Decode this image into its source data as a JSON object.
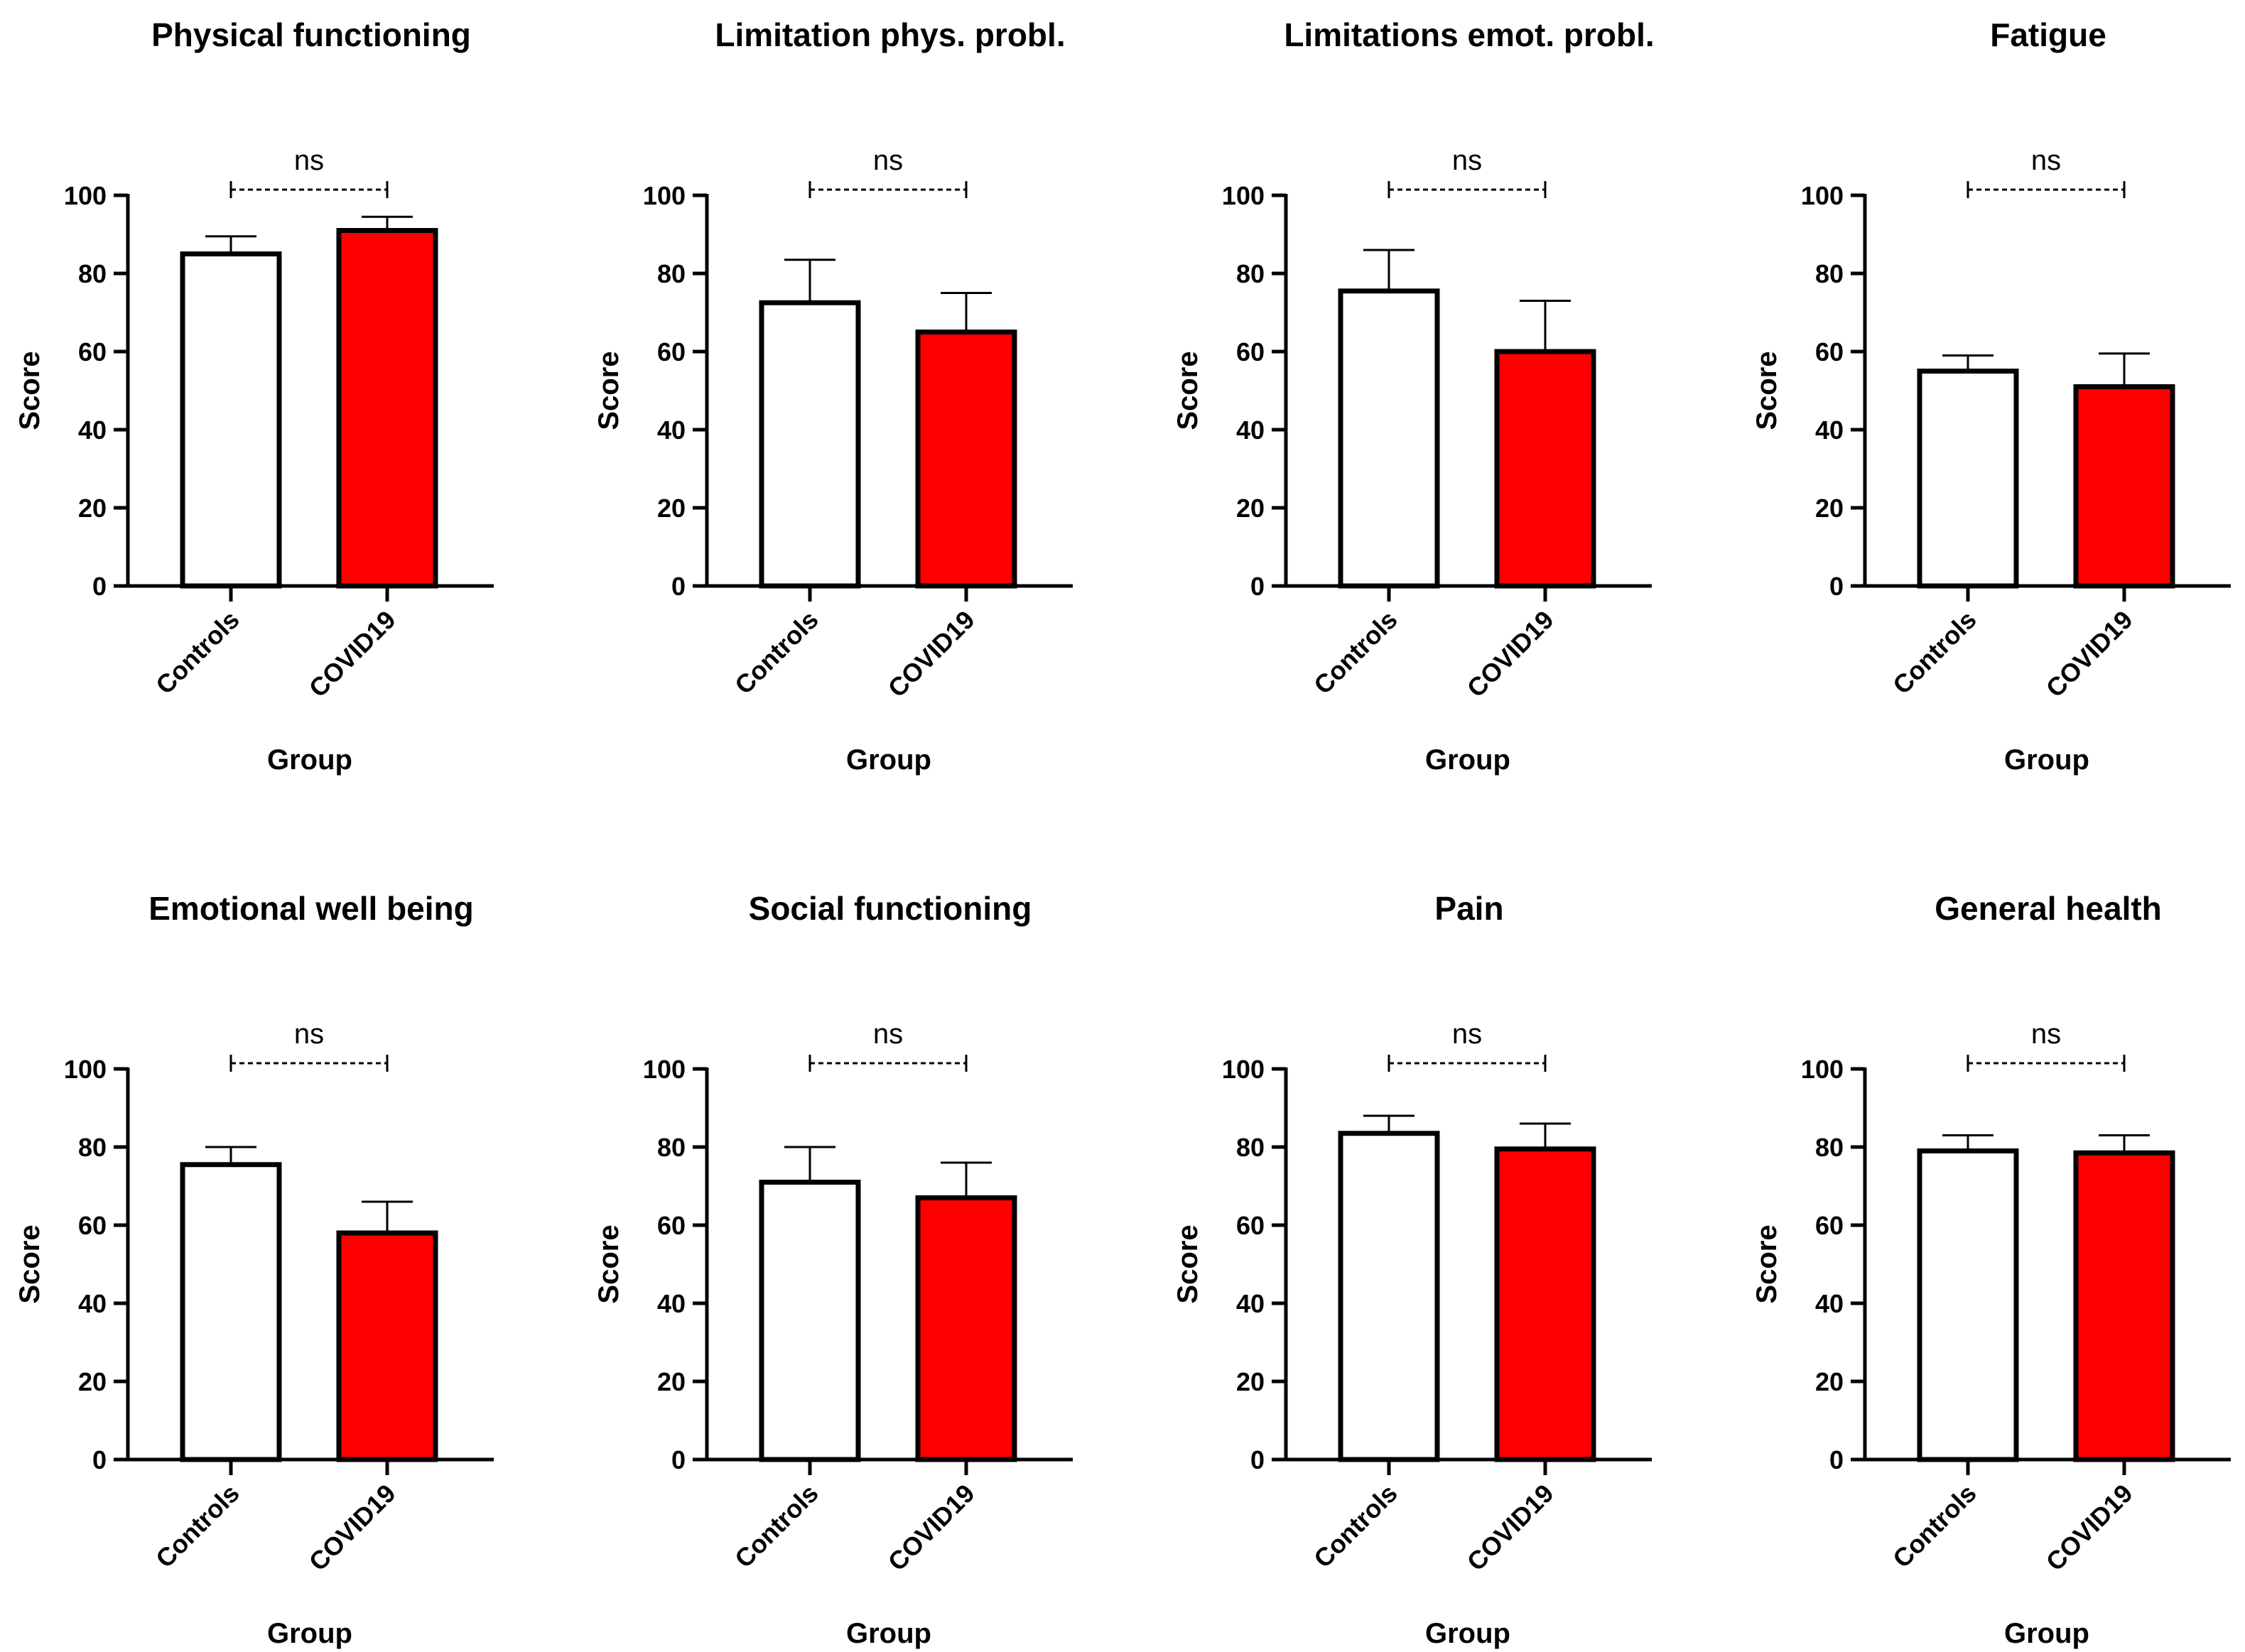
{
  "chart_data": [
    {
      "type": "bar",
      "title": "Physical functioning",
      "categories": [
        "Controls",
        "COVID19"
      ],
      "values": [
        85,
        91
      ],
      "errors": [
        4.5,
        3.5
      ],
      "xlabel": "Group",
      "ylabel": "Score",
      "ylim": [
        0,
        100
      ],
      "yticks": [
        0,
        20,
        40,
        60,
        80,
        100
      ],
      "significance": "ns",
      "colors": [
        "#ffffff",
        "#ff0000"
      ]
    },
    {
      "type": "bar",
      "title": "Limitation phys. probl.",
      "categories": [
        "Controls",
        "COVID19"
      ],
      "values": [
        72.5,
        65
      ],
      "errors": [
        11,
        10
      ],
      "xlabel": "Group",
      "ylabel": "Score",
      "ylim": [
        0,
        100
      ],
      "yticks": [
        0,
        20,
        40,
        60,
        80,
        100
      ],
      "significance": "ns",
      "colors": [
        "#ffffff",
        "#ff0000"
      ]
    },
    {
      "type": "bar",
      "title": "Limitations emot. probl.",
      "categories": [
        "Controls",
        "COVID19"
      ],
      "values": [
        75.5,
        60
      ],
      "errors": [
        10.5,
        13
      ],
      "xlabel": "Group",
      "ylabel": "Score",
      "ylim": [
        0,
        100
      ],
      "yticks": [
        0,
        20,
        40,
        60,
        80,
        100
      ],
      "significance": "ns",
      "colors": [
        "#ffffff",
        "#ff0000"
      ]
    },
    {
      "type": "bar",
      "title": "Fatigue",
      "categories": [
        "Controls",
        "COVID19"
      ],
      "values": [
        55,
        51
      ],
      "errors": [
        4,
        8.5
      ],
      "xlabel": "Group",
      "ylabel": "Score",
      "ylim": [
        0,
        100
      ],
      "yticks": [
        0,
        20,
        40,
        60,
        80,
        100
      ],
      "significance": "ns",
      "colors": [
        "#ffffff",
        "#ff0000"
      ]
    },
    {
      "type": "bar",
      "title": "Emotional well being",
      "categories": [
        "Controls",
        "COVID19"
      ],
      "values": [
        75.5,
        58
      ],
      "errors": [
        4.5,
        8
      ],
      "xlabel": "Group",
      "ylabel": "Score",
      "ylim": [
        0,
        100
      ],
      "yticks": [
        0,
        20,
        40,
        60,
        80,
        100
      ],
      "significance": "ns",
      "colors": [
        "#ffffff",
        "#ff0000"
      ]
    },
    {
      "type": "bar",
      "title": "Social functioning",
      "categories": [
        "Controls",
        "COVID19"
      ],
      "values": [
        71,
        67
      ],
      "errors": [
        9,
        9
      ],
      "xlabel": "Group",
      "ylabel": "Score",
      "ylim": [
        0,
        100
      ],
      "yticks": [
        0,
        20,
        40,
        60,
        80,
        100
      ],
      "significance": "ns",
      "colors": [
        "#ffffff",
        "#ff0000"
      ]
    },
    {
      "type": "bar",
      "title": "Pain",
      "categories": [
        "Controls",
        "COVID19"
      ],
      "values": [
        83.5,
        79.5
      ],
      "errors": [
        4.5,
        6.5
      ],
      "xlabel": "Group",
      "ylabel": "Score",
      "ylim": [
        0,
        100
      ],
      "yticks": [
        0,
        20,
        40,
        60,
        80,
        100
      ],
      "significance": "ns",
      "colors": [
        "#ffffff",
        "#ff0000"
      ]
    },
    {
      "type": "bar",
      "title": "General health",
      "categories": [
        "Controls",
        "COVID19"
      ],
      "values": [
        79,
        78.5
      ],
      "errors": [
        4,
        4.5
      ],
      "xlabel": "Group",
      "ylabel": "Score",
      "ylim": [
        0,
        100
      ],
      "yticks": [
        0,
        20,
        40,
        60,
        80,
        100
      ],
      "significance": "ns",
      "colors": [
        "#ffffff",
        "#ff0000"
      ]
    }
  ]
}
